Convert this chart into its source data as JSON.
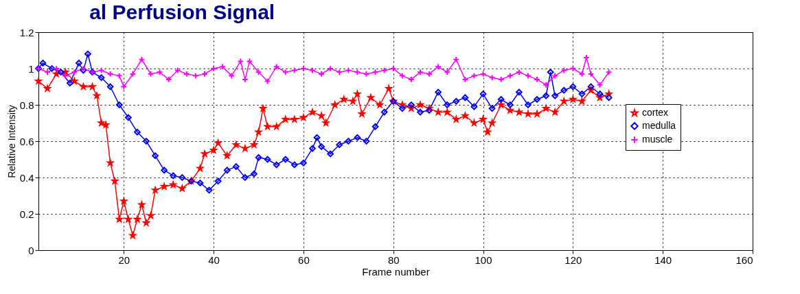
{
  "chart_data": {
    "type": "line",
    "title": "al Perfusion Signal",
    "xlabel": "Frame number",
    "ylabel": "Relative Intensity",
    "xlim": [
      1,
      160
    ],
    "xticks": [
      20,
      40,
      60,
      80,
      100,
      120,
      140,
      160
    ],
    "ylim": [
      0,
      1.2
    ],
    "yticks": [
      0,
      0.2,
      0.4,
      0.6,
      0.8,
      1,
      1.2
    ],
    "grid": true,
    "legend": "right",
    "line_style": "solid",
    "series": [
      {
        "name": "cortex",
        "color": "#ff0000",
        "marker": "star",
        "x": [
          1,
          3,
          5,
          7,
          9,
          11,
          13,
          14,
          15,
          16,
          17,
          18,
          19,
          20,
          21,
          22,
          23,
          24,
          25,
          26,
          27,
          29,
          31,
          33,
          35,
          37,
          38,
          40,
          41,
          43,
          45,
          47,
          49,
          50,
          51,
          52,
          54,
          56,
          58,
          60,
          62,
          64,
          65,
          67,
          69,
          71,
          72,
          73,
          75,
          77,
          79,
          80,
          82,
          84,
          86,
          88,
          90,
          92,
          94,
          96,
          98,
          100,
          101,
          102,
          104,
          106,
          108,
          110,
          112,
          114,
          116,
          118,
          120,
          122,
          124,
          126,
          128
        ],
        "values": [
          0.93,
          0.89,
          0.97,
          0.98,
          0.93,
          0.9,
          0.9,
          0.85,
          0.7,
          0.69,
          0.48,
          0.38,
          0.17,
          0.27,
          0.17,
          0.08,
          0.17,
          0.25,
          0.15,
          0.19,
          0.33,
          0.35,
          0.36,
          0.34,
          0.38,
          0.45,
          0.53,
          0.55,
          0.59,
          0.52,
          0.58,
          0.56,
          0.58,
          0.65,
          0.78,
          0.68,
          0.68,
          0.72,
          0.72,
          0.73,
          0.76,
          0.74,
          0.7,
          0.8,
          0.83,
          0.82,
          0.86,
          0.75,
          0.84,
          0.8,
          0.89,
          0.82,
          0.8,
          0.78,
          0.8,
          0.78,
          0.76,
          0.76,
          0.72,
          0.74,
          0.7,
          0.72,
          0.65,
          0.7,
          0.8,
          0.77,
          0.76,
          0.75,
          0.75,
          0.78,
          0.76,
          0.82,
          0.83,
          0.82,
          0.88,
          0.84,
          0.86
        ]
      },
      {
        "name": "medulla",
        "color": "#0000ff",
        "marker": "diamond",
        "x": [
          1,
          2,
          4,
          6,
          8,
          10,
          11,
          12,
          13,
          15,
          17,
          19,
          21,
          23,
          25,
          27,
          29,
          31,
          33,
          35,
          37,
          39,
          41,
          43,
          45,
          47,
          49,
          50,
          52,
          54,
          56,
          58,
          60,
          62,
          63,
          64,
          66,
          68,
          70,
          72,
          74,
          76,
          78,
          80,
          82,
          84,
          86,
          88,
          90,
          92,
          94,
          96,
          98,
          100,
          102,
          104,
          106,
          108,
          110,
          112,
          114,
          115,
          116,
          118,
          120,
          122,
          124,
          126,
          128
        ],
        "values": [
          1,
          1.03,
          1,
          0.98,
          0.92,
          1.03,
          0.99,
          1.08,
          0.98,
          0.95,
          0.9,
          0.8,
          0.73,
          0.65,
          0.6,
          0.52,
          0.44,
          0.41,
          0.4,
          0.38,
          0.37,
          0.33,
          0.38,
          0.44,
          0.46,
          0.4,
          0.42,
          0.51,
          0.5,
          0.47,
          0.5,
          0.47,
          0.48,
          0.56,
          0.62,
          0.57,
          0.53,
          0.58,
          0.6,
          0.62,
          0.6,
          0.68,
          0.76,
          0.82,
          0.78,
          0.8,
          0.76,
          0.77,
          0.87,
          0.8,
          0.82,
          0.84,
          0.79,
          0.86,
          0.78,
          0.83,
          0.8,
          0.87,
          0.8,
          0.83,
          0.85,
          0.98,
          0.85,
          0.88,
          0.9,
          0.86,
          0.9,
          0.86,
          0.84
        ]
      },
      {
        "name": "muscle",
        "color": "#ff00ff",
        "marker": "cross",
        "x": [
          1,
          3,
          5,
          7,
          9,
          11,
          13,
          15,
          17,
          19,
          20,
          22,
          24,
          26,
          28,
          30,
          32,
          34,
          36,
          38,
          40,
          42,
          44,
          46,
          47,
          48,
          50,
          52,
          54,
          56,
          58,
          60,
          62,
          64,
          66,
          68,
          70,
          72,
          74,
          76,
          78,
          80,
          82,
          84,
          86,
          88,
          90,
          92,
          94,
          96,
          98,
          100,
          102,
          104,
          106,
          108,
          110,
          112,
          114,
          116,
          118,
          120,
          122,
          123,
          124,
          126,
          128
        ],
        "values": [
          1,
          0.98,
          1,
          0.96,
          0.98,
          1,
          0.98,
          0.99,
          0.97,
          0.96,
          0.9,
          0.97,
          1.05,
          0.97,
          0.98,
          0.94,
          0.99,
          0.97,
          0.96,
          0.97,
          1,
          1.01,
          0.96,
          1.04,
          0.94,
          1.04,
          0.98,
          0.93,
          1.01,
          0.98,
          0.99,
          1,
          0.99,
          0.97,
          1,
          0.98,
          0.99,
          0.98,
          0.97,
          0.98,
          0.99,
          1,
          0.96,
          0.94,
          0.98,
          0.97,
          1.01,
          0.98,
          1.05,
          0.94,
          0.96,
          0.97,
          0.95,
          0.94,
          0.96,
          0.98,
          0.96,
          0.94,
          0.91,
          0.96,
          0.99,
          1,
          0.97,
          1.06,
          0.97,
          0.91,
          0.98
        ]
      }
    ]
  }
}
